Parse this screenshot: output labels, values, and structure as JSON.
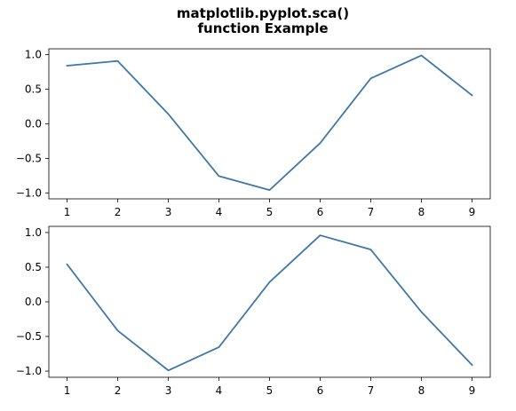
{
  "figure": {
    "title_lines": [
      "matplotlib.pyplot.sca()",
      "function Example"
    ]
  },
  "colors": {
    "line": "#3f77a7",
    "background": "#ffffff",
    "frame": "#000000"
  },
  "chart_data": [
    {
      "type": "line",
      "x": [
        1,
        2,
        3,
        4,
        5,
        6,
        7,
        8,
        9
      ],
      "series": [
        {
          "values": [
            0.841,
            0.909,
            0.141,
            -0.757,
            -0.959,
            -0.279,
            0.657,
            0.989,
            0.412
          ]
        }
      ],
      "xlim": [
        0.64,
        9.36
      ],
      "ylim": [
        -1.086,
        1.085
      ],
      "xticks": [
        1,
        2,
        3,
        4,
        5,
        6,
        7,
        8,
        9
      ],
      "yticks": [
        1.0,
        0.5,
        0.0,
        -0.5,
        -1.0
      ],
      "ytick_labels": [
        "1.0",
        "0.5",
        "0.0",
        "−0.5",
        "−1.0"
      ],
      "grid": false
    },
    {
      "type": "line",
      "x": [
        1,
        2,
        3,
        4,
        5,
        6,
        7,
        8,
        9
      ],
      "series": [
        {
          "values": [
            0.54,
            -0.416,
            -0.99,
            -0.654,
            0.284,
            0.96,
            0.754,
            -0.146,
            -0.911
          ]
        }
      ],
      "xlim": [
        0.64,
        9.36
      ],
      "ylim": [
        -1.089,
        1.089
      ],
      "xticks": [
        1,
        2,
        3,
        4,
        5,
        6,
        7,
        8,
        9
      ],
      "yticks": [
        1.0,
        0.5,
        0.0,
        -0.5,
        -1.0
      ],
      "ytick_labels": [
        "1.0",
        "0.5",
        "0.0",
        "−0.5",
        "−1.0"
      ],
      "grid": false
    }
  ]
}
